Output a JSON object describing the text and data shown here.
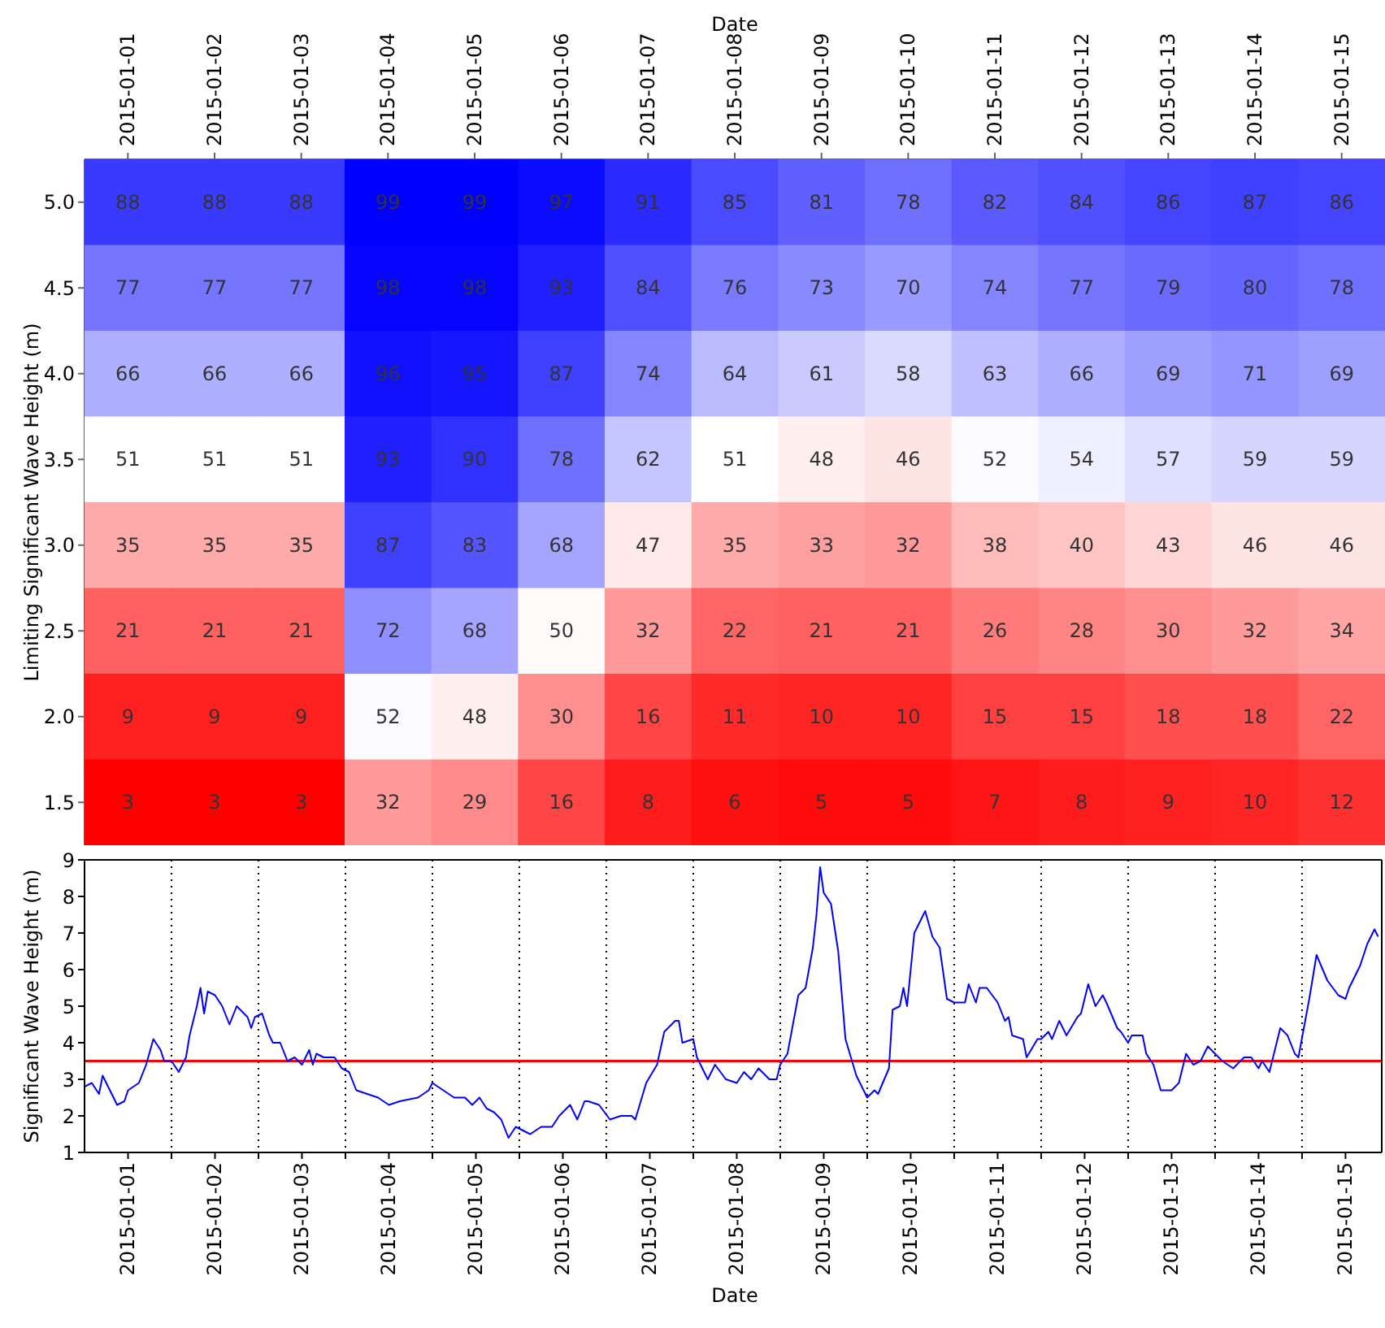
{
  "chart_data": [
    {
      "type": "heatmap",
      "xlabel": "Date",
      "ylabel": "Limiting Significant Wave Height (m)",
      "data_labels": true,
      "categories": [
        "2015-01-01",
        "2015-01-02",
        "2015-01-03",
        "2015-01-04",
        "2015-01-05",
        "2015-01-06",
        "2015-01-07",
        "2015-01-08",
        "2015-01-09",
        "2015-01-10",
        "2015-01-11",
        "2015-01-12",
        "2015-01-13",
        "2015-01-14",
        "2015-01-15"
      ],
      "y_categories": [
        "5.0",
        "4.5",
        "4.0",
        "3.5",
        "3.0",
        "2.5",
        "2.0",
        "1.5"
      ],
      "cells": [
        [
          88,
          88,
          88,
          99,
          99,
          97,
          91,
          85,
          81,
          78,
          82,
          84,
          86,
          87,
          86
        ],
        [
          77,
          77,
          77,
          98,
          98,
          93,
          84,
          76,
          73,
          70,
          74,
          77,
          79,
          80,
          78
        ],
        [
          66,
          66,
          66,
          96,
          95,
          87,
          74,
          64,
          61,
          58,
          63,
          66,
          69,
          71,
          69
        ],
        [
          51,
          51,
          51,
          93,
          90,
          78,
          62,
          51,
          48,
          46,
          52,
          54,
          57,
          59,
          59
        ],
        [
          35,
          35,
          35,
          87,
          83,
          68,
          47,
          35,
          33,
          32,
          38,
          40,
          43,
          46,
          46
        ],
        [
          21,
          21,
          21,
          72,
          68,
          50,
          32,
          22,
          21,
          21,
          26,
          28,
          30,
          32,
          34
        ],
        [
          9,
          9,
          9,
          52,
          48,
          30,
          16,
          11,
          10,
          10,
          15,
          15,
          18,
          18,
          22
        ],
        [
          3,
          3,
          3,
          32,
          29,
          16,
          8,
          6,
          5,
          5,
          7,
          8,
          9,
          10,
          12
        ]
      ]
    },
    {
      "type": "line",
      "xlabel": "Date",
      "ylabel": "Significant Wave Height (m)",
      "color": "#0000ff",
      "grid": "x",
      "xlim": [
        "2015-01-01T00:00",
        "2015-01-15T22:00"
      ],
      "xticks": [
        {
          "value": "2015-01-01T12:00",
          "label": "2015-01-01"
        },
        {
          "value": "2015-01-02T00:00",
          "label": null
        },
        {
          "value": "2015-01-02T12:00",
          "label": "2015-01-02"
        },
        {
          "value": "2015-01-03T00:00",
          "label": null
        },
        {
          "value": "2015-01-03T12:00",
          "label": "2015-01-03"
        },
        {
          "value": "2015-01-04T00:00",
          "label": null
        },
        {
          "value": "2015-01-04T12:00",
          "label": "2015-01-04"
        },
        {
          "value": "2015-01-05T00:00",
          "label": null
        },
        {
          "value": "2015-01-05T12:00",
          "label": "2015-01-05"
        },
        {
          "value": "2015-01-06T00:00",
          "label": null
        },
        {
          "value": "2015-01-06T12:00",
          "label": "2015-01-06"
        },
        {
          "value": "2015-01-07T00:00",
          "label": null
        },
        {
          "value": "2015-01-07T12:00",
          "label": "2015-01-07"
        },
        {
          "value": "2015-01-08T00:00",
          "label": null
        },
        {
          "value": "2015-01-08T12:00",
          "label": "2015-01-08"
        },
        {
          "value": "2015-01-09T00:00",
          "label": null
        },
        {
          "value": "2015-01-09T12:00",
          "label": "2015-01-09"
        },
        {
          "value": "2015-01-10T00:00",
          "label": null
        },
        {
          "value": "2015-01-10T12:00",
          "label": "2015-01-10"
        },
        {
          "value": "2015-01-11T00:00",
          "label": null
        },
        {
          "value": "2015-01-11T12:00",
          "label": "2015-01-11"
        },
        {
          "value": "2015-01-12T00:00",
          "label": null
        },
        {
          "value": "2015-01-12T12:00",
          "label": "2015-01-12"
        },
        {
          "value": "2015-01-13T00:00",
          "label": null
        },
        {
          "value": "2015-01-13T12:00",
          "label": "2015-01-13"
        },
        {
          "value": "2015-01-14T00:00",
          "label": null
        },
        {
          "value": "2015-01-14T12:00",
          "label": "2015-01-14"
        },
        {
          "value": "2015-01-15T00:00",
          "label": null
        },
        {
          "value": "2015-01-15T12:00",
          "label": "2015-01-15"
        }
      ],
      "ylim": [
        1,
        9
      ],
      "yticks": [
        1,
        2,
        3,
        4,
        5,
        6,
        7,
        8,
        9
      ],
      "ref_lines": [
        {
          "axis": "y",
          "value": 3.5,
          "color": "#ff0000"
        }
      ],
      "x": [
        "2015-01-01T00:00",
        "2015-01-01T02:00",
        "2015-01-01T04:00",
        "2015-01-01T05:00",
        "2015-01-01T07:00",
        "2015-01-01T09:00",
        "2015-01-01T11:00",
        "2015-01-01T12:00",
        "2015-01-01T15:00",
        "2015-01-01T17:00",
        "2015-01-01T19:00",
        "2015-01-01T21:00",
        "2015-01-01T22:00",
        "2015-01-02T00:00",
        "2015-01-02T02:00",
        "2015-01-02T04:00",
        "2015-01-02T05:00",
        "2015-01-02T07:00",
        "2015-01-02T08:00",
        "2015-01-02T09:00",
        "2015-01-02T10:00",
        "2015-01-02T12:00",
        "2015-01-02T14:00",
        "2015-01-02T16:00",
        "2015-01-02T18:00",
        "2015-01-02T21:00",
        "2015-01-02T22:00",
        "2015-01-02T23:00",
        "2015-01-03T01:00",
        "2015-01-03T03:00",
        "2015-01-03T04:00",
        "2015-01-03T06:00",
        "2015-01-03T08:00",
        "2015-01-03T10:00",
        "2015-01-03T12:00",
        "2015-01-03T14:00",
        "2015-01-03T15:00",
        "2015-01-03T16:00",
        "2015-01-03T18:00",
        "2015-01-03T21:00",
        "2015-01-03T23:00",
        "2015-01-04T01:00",
        "2015-01-04T03:00",
        "2015-01-04T06:00",
        "2015-01-04T09:00",
        "2015-01-04T12:00",
        "2015-01-04T15:00",
        "2015-01-04T20:00",
        "2015-01-04T23:00",
        "2015-01-05T00:00",
        "2015-01-05T03:00",
        "2015-01-05T06:00",
        "2015-01-05T09:00",
        "2015-01-05T11:00",
        "2015-01-05T13:00",
        "2015-01-05T15:00",
        "2015-01-05T17:00",
        "2015-01-05T19:00",
        "2015-01-05T21:00",
        "2015-01-05T23:00",
        "2015-01-06T01:00",
        "2015-01-06T03:00",
        "2015-01-06T06:00",
        "2015-01-06T09:00",
        "2015-01-06T11:00",
        "2015-01-06T14:00",
        "2015-01-06T16:00",
        "2015-01-06T18:00",
        "2015-01-06T19:00",
        "2015-01-06T22:00",
        "2015-01-07T01:00",
        "2015-01-07T04:00",
        "2015-01-07T07:00",
        "2015-01-07T08:00",
        "2015-01-07T11:00",
        "2015-01-07T14:00",
        "2015-01-07T16:00",
        "2015-01-07T19:00",
        "2015-01-07T20:00",
        "2015-01-07T21:00",
        "2015-01-08T00:00",
        "2015-01-08T01:00",
        "2015-01-08T04:00",
        "2015-01-08T06:00",
        "2015-01-08T09:00",
        "2015-01-08T12:00",
        "2015-01-08T14:00",
        "2015-01-08T16:00",
        "2015-01-08T18:00",
        "2015-01-08T21:00",
        "2015-01-08T23:00",
        "2015-01-09T00:00",
        "2015-01-09T02:00",
        "2015-01-09T05:00",
        "2015-01-09T07:00",
        "2015-01-09T09:00",
        "2015-01-09T10:00",
        "2015-01-09T11:00",
        "2015-01-09T12:00",
        "2015-01-09T14:00",
        "2015-01-09T16:00",
        "2015-01-09T18:00",
        "2015-01-09T21:00",
        "2015-01-10T00:00",
        "2015-01-10T02:00",
        "2015-01-10T03:00",
        "2015-01-10T06:00",
        "2015-01-10T07:00",
        "2015-01-10T09:00",
        "2015-01-10T10:00",
        "2015-01-10T11:00",
        "2015-01-10T13:00",
        "2015-01-10T16:00",
        "2015-01-10T18:00",
        "2015-01-10T20:00",
        "2015-01-10T22:00",
        "2015-01-11T00:00",
        "2015-01-11T03:00",
        "2015-01-11T04:00",
        "2015-01-11T06:00",
        "2015-01-11T07:00",
        "2015-01-11T09:00",
        "2015-01-11T12:00",
        "2015-01-11T14:00",
        "2015-01-11T15:00",
        "2015-01-11T16:00",
        "2015-01-11T19:00",
        "2015-01-11T20:00",
        "2015-01-11T23:00",
        "2015-01-12T00:00",
        "2015-01-12T02:00",
        "2015-01-12T03:00",
        "2015-01-12T05:00",
        "2015-01-12T07:00",
        "2015-01-12T10:00",
        "2015-01-12T11:00",
        "2015-01-12T13:00",
        "2015-01-12T15:00",
        "2015-01-12T17:00",
        "2015-01-12T18:00",
        "2015-01-12T21:00",
        "2015-01-12T22:00",
        "2015-01-13T00:00",
        "2015-01-13T01:00",
        "2015-01-13T04:00",
        "2015-01-13T05:00",
        "2015-01-13T07:00",
        "2015-01-13T09:00",
        "2015-01-13T12:00",
        "2015-01-13T14:00",
        "2015-01-13T16:00",
        "2015-01-13T18:00",
        "2015-01-13T20:00",
        "2015-01-13T22:00",
        "2015-01-14T00:00",
        "2015-01-14T02:00",
        "2015-01-14T05:00",
        "2015-01-14T08:00",
        "2015-01-14T10:00",
        "2015-01-14T12:00",
        "2015-01-14T13:00",
        "2015-01-14T15:00",
        "2015-01-14T18:00",
        "2015-01-14T20:00",
        "2015-01-14T22:00",
        "2015-01-14T23:00",
        "2015-01-15T02:00",
        "2015-01-15T04:00",
        "2015-01-15T07:00",
        "2015-01-15T10:00",
        "2015-01-15T12:00",
        "2015-01-15T13:00",
        "2015-01-15T16:00",
        "2015-01-15T18:00",
        "2015-01-15T20:00",
        "2015-01-15T21:00"
      ],
      "values": [
        2.8,
        2.9,
        2.6,
        3.1,
        2.7,
        2.3,
        2.4,
        2.7,
        2.9,
        3.4,
        4.1,
        3.8,
        3.5,
        3.5,
        3.2,
        3.6,
        4.2,
        5.0,
        5.5,
        4.8,
        5.4,
        5.3,
        5.0,
        4.5,
        5.0,
        4.7,
        4.4,
        4.7,
        4.8,
        4.2,
        4.0,
        4.0,
        3.5,
        3.6,
        3.4,
        3.8,
        3.4,
        3.7,
        3.6,
        3.6,
        3.3,
        3.2,
        2.7,
        2.6,
        2.5,
        2.3,
        2.4,
        2.5,
        2.7,
        2.9,
        2.7,
        2.5,
        2.5,
        2.3,
        2.5,
        2.2,
        2.1,
        1.9,
        1.4,
        1.7,
        1.6,
        1.5,
        1.7,
        1.7,
        2.0,
        2.3,
        1.9,
        2.4,
        2.4,
        2.3,
        1.9,
        2.0,
        2.0,
        1.9,
        2.9,
        3.4,
        4.3,
        4.6,
        4.6,
        4.0,
        4.1,
        3.6,
        3.0,
        3.4,
        3.0,
        2.9,
        3.2,
        3.0,
        3.3,
        3.0,
        3.0,
        3.4,
        3.7,
        5.3,
        5.5,
        6.6,
        7.5,
        8.8,
        8.1,
        7.8,
        6.5,
        4.1,
        3.1,
        2.5,
        2.7,
        2.6,
        3.3,
        4.9,
        5.0,
        5.5,
        5.0,
        7.0,
        7.6,
        6.9,
        6.6,
        5.2,
        5.1,
        5.1,
        5.6,
        5.1,
        5.5,
        5.5,
        5.1,
        4.6,
        4.7,
        4.2,
        4.1,
        3.6,
        4.1,
        4.1,
        4.3,
        4.1,
        4.6,
        4.2,
        4.7,
        4.8,
        5.6,
        5.0,
        5.3,
        5.1,
        4.4,
        4.3,
        4.0,
        4.2,
        4.2,
        3.7,
        3.4,
        2.7,
        2.7,
        2.9,
        3.7,
        3.4,
        3.5,
        3.9,
        3.7,
        3.5,
        3.3,
        3.6,
        3.6,
        3.3,
        3.5,
        3.2,
        4.4,
        4.2,
        3.7,
        3.6,
        5.2,
        6.4,
        5.7,
        5.3,
        5.2,
        5.5,
        6.1,
        6.7,
        7.1,
        6.9
      ]
    }
  ]
}
